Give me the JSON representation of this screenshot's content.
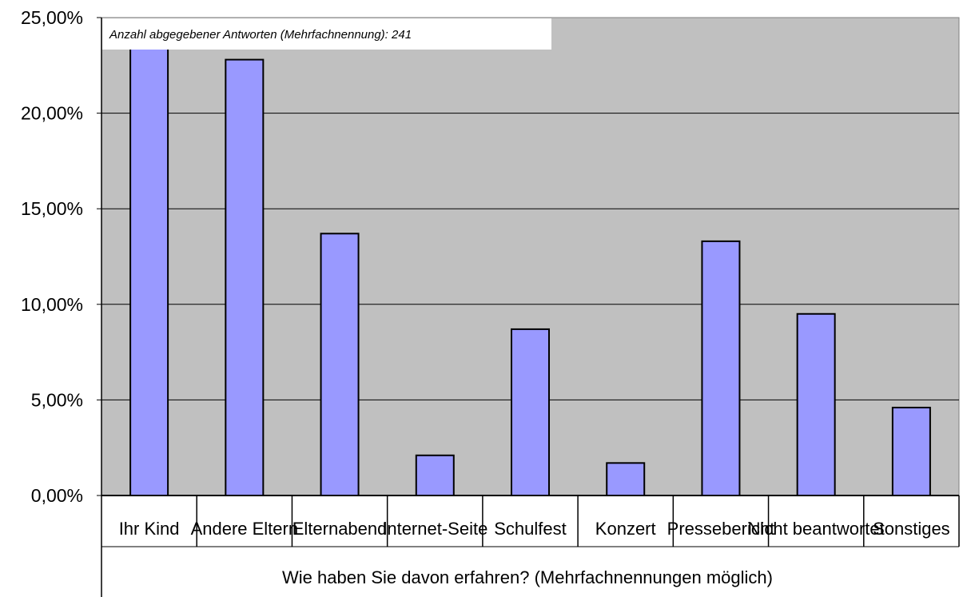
{
  "chart_data": {
    "type": "bar",
    "title": "",
    "xlabel": "Wie haben Sie davon erfahren? (Mehrfachnennungen möglich)",
    "ylabel": "",
    "annotation": "Anzahl abgegebener Antworten (Mehrfachnennung): 241",
    "categories": [
      "Ihr Kind",
      "Andere Eltern",
      "Elternabend",
      "Internet-Seite",
      "Schulfest",
      "Konzert",
      "Pressebericht",
      "Nicht beantwortet",
      "Sonstiges"
    ],
    "values": [
      24.5,
      22.8,
      13.7,
      2.1,
      8.7,
      1.7,
      13.3,
      9.5,
      4.6
    ],
    "ylim": [
      0,
      25
    ],
    "yticks": [
      "0,00%",
      "5,00%",
      "10,00%",
      "15,00%",
      "20,00%",
      "25,00%"
    ],
    "grid": true,
    "legend": "none",
    "colors": {
      "bar": "#9999ff",
      "plot_bg": "#c0c0c0",
      "page_bg": "#ffffff",
      "border": "#000000",
      "grid": "#000000"
    }
  }
}
